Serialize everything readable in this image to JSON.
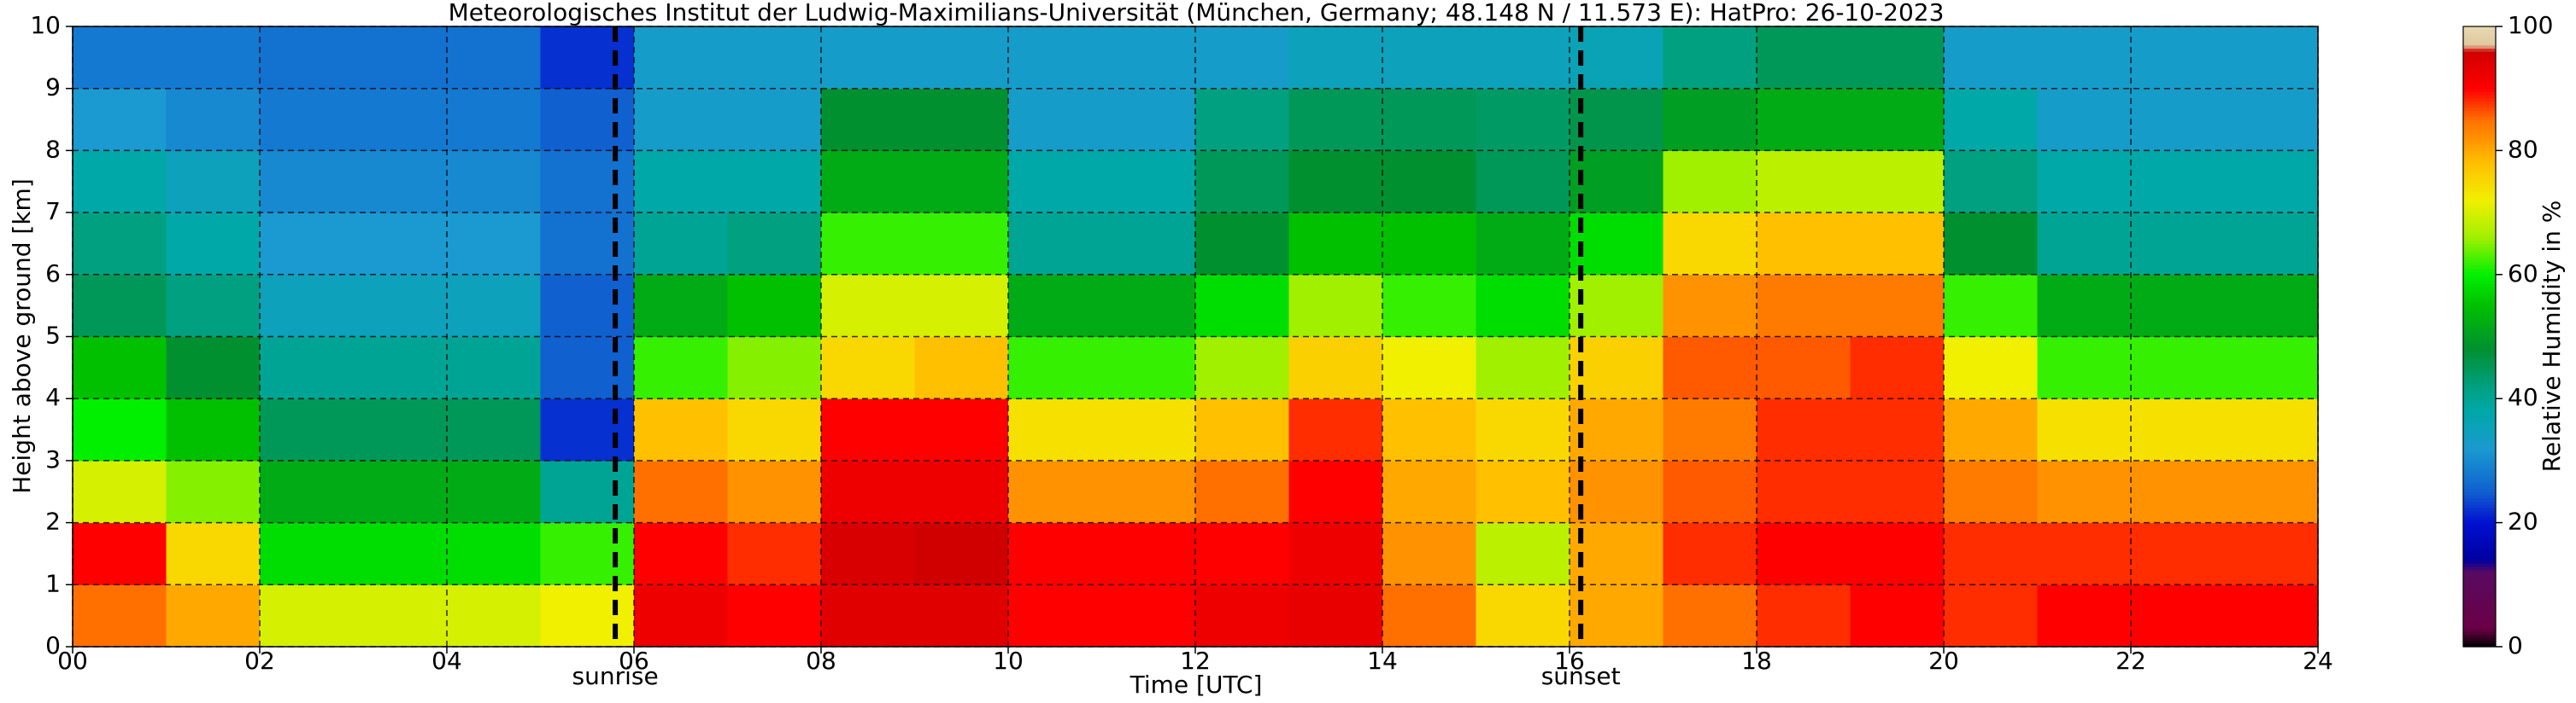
{
  "chart_data": {
    "type": "heatmap",
    "title": "Meteorologisches Institut der Ludwig-Maximilians-Universität (München, Germany; 48.148 N / 11.573 E):    HatPro: 26-10-2023",
    "x_label": "Time [UTC]",
    "y_label": "Height above ground [km]",
    "colorbar_label": "Relative Humidity in %",
    "xlim": [
      0,
      24
    ],
    "ylim": [
      0,
      10
    ],
    "xticks": [
      {
        "value": 0,
        "label": "00"
      },
      {
        "value": 2,
        "label": "02"
      },
      {
        "value": 4,
        "label": "04"
      },
      {
        "value": 6,
        "label": "06"
      },
      {
        "value": 8,
        "label": "08"
      },
      {
        "value": 10,
        "label": "10"
      },
      {
        "value": 12,
        "label": "12"
      },
      {
        "value": 14,
        "label": "14"
      },
      {
        "value": 16,
        "label": "16"
      },
      {
        "value": 18,
        "label": "18"
      },
      {
        "value": 20,
        "label": "20"
      },
      {
        "value": 22,
        "label": "22"
      },
      {
        "value": 24,
        "label": "24"
      }
    ],
    "yticks": [
      0,
      1,
      2,
      3,
      4,
      5,
      6,
      7,
      8,
      9,
      10
    ],
    "grid": true,
    "x_edges": [
      0,
      1,
      2,
      3,
      4,
      5,
      6,
      7,
      8,
      9,
      10,
      11,
      12,
      13,
      14,
      15,
      16,
      17,
      18,
      19,
      20,
      21,
      22,
      23,
      24
    ],
    "y_edges": [
      0,
      1,
      2,
      3,
      4,
      5,
      6,
      7,
      8,
      9,
      10
    ],
    "z": [
      [
        85,
        80,
        70,
        70,
        70,
        72,
        92,
        90,
        94,
        94,
        90,
        90,
        92,
        93,
        85,
        75,
        80,
        85,
        88,
        90,
        88,
        90,
        90,
        90
      ],
      [
        90,
        75,
        58,
        58,
        58,
        62,
        90,
        88,
        95,
        96,
        90,
        90,
        90,
        92,
        82,
        68,
        80,
        88,
        90,
        90,
        88,
        88,
        88,
        88
      ],
      [
        70,
        65,
        52,
        52,
        52,
        40,
        85,
        82,
        92,
        92,
        82,
        82,
        85,
        90,
        80,
        78,
        82,
        86,
        88,
        88,
        84,
        82,
        82,
        82
      ],
      [
        60,
        55,
        45,
        45,
        45,
        22,
        78,
        75,
        90,
        90,
        74,
        74,
        78,
        88,
        78,
        75,
        80,
        84,
        88,
        88,
        80,
        74,
        74,
        74
      ],
      [
        55,
        48,
        40,
        40,
        40,
        25,
        62,
        65,
        75,
        78,
        62,
        62,
        66,
        76,
        72,
        66,
        76,
        86,
        86,
        88,
        72,
        62,
        62,
        62
      ],
      [
        45,
        42,
        35,
        35,
        35,
        25,
        52,
        55,
        70,
        70,
        52,
        52,
        58,
        66,
        62,
        58,
        66,
        82,
        84,
        84,
        62,
        52,
        52,
        52
      ],
      [
        42,
        38,
        32,
        32,
        32,
        27,
        40,
        42,
        62,
        62,
        40,
        40,
        48,
        55,
        55,
        52,
        58,
        75,
        78,
        78,
        48,
        40,
        40,
        40
      ],
      [
        38,
        35,
        30,
        30,
        30,
        27,
        38,
        38,
        52,
        52,
        38,
        38,
        45,
        48,
        48,
        45,
        50,
        66,
        68,
        68,
        42,
        38,
        38,
        38
      ],
      [
        32,
        30,
        28,
        28,
        28,
        25,
        33,
        33,
        48,
        48,
        33,
        33,
        42,
        45,
        45,
        44,
        46,
        50,
        52,
        52,
        38,
        33,
        33,
        33
      ],
      [
        28,
        28,
        27,
        27,
        27,
        22,
        33,
        33,
        33,
        33,
        33,
        33,
        33,
        35,
        35,
        35,
        36,
        42,
        45,
        45,
        33,
        33,
        33,
        33
      ]
    ],
    "vlines": [
      {
        "x": 5.8,
        "label": "sunrise"
      },
      {
        "x": 16.12,
        "label": "sunset"
      }
    ],
    "clim": [
      0,
      100
    ],
    "cticks": [
      0,
      20,
      40,
      60,
      80,
      100
    ],
    "colorscale": [
      [
        0,
        "#000000"
      ],
      [
        3,
        "#6b0046"
      ],
      [
        12,
        "#5a0a60"
      ],
      [
        14,
        "#0000a0"
      ],
      [
        20,
        "#0010d0"
      ],
      [
        25,
        "#1060d0"
      ],
      [
        32,
        "#1a9ad0"
      ],
      [
        38,
        "#00a8a8"
      ],
      [
        42,
        "#00a080"
      ],
      [
        48,
        "#009030"
      ],
      [
        55,
        "#00c000"
      ],
      [
        60,
        "#00f000"
      ],
      [
        66,
        "#a0f000"
      ],
      [
        72,
        "#f0f000"
      ],
      [
        78,
        "#ffc000"
      ],
      [
        85,
        "#ff7000"
      ],
      [
        90,
        "#ff0000"
      ],
      [
        96,
        "#d00000"
      ],
      [
        97,
        "#e0c8a0"
      ],
      [
        100,
        "#e8d8b0"
      ]
    ]
  }
}
